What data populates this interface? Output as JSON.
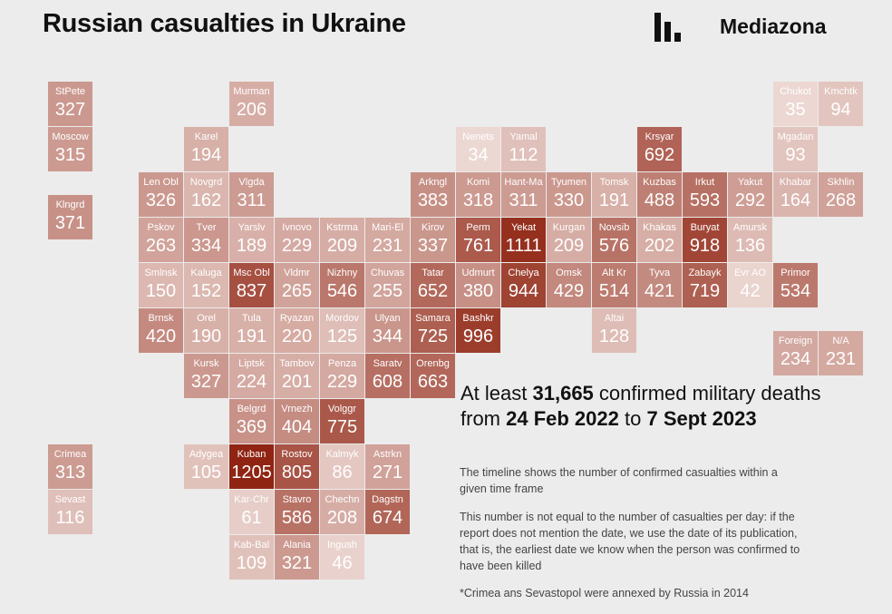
{
  "header": {
    "title": "Russian casualties in Ukraine",
    "brand": "Mediazona"
  },
  "chart_data": {
    "type": "heatmap",
    "title": "Russian casualties in Ukraine",
    "colors": {
      "min": "#ecd8d3",
      "max": "#8f2412"
    },
    "value_range": [
      34,
      1205
    ],
    "cells": [
      {
        "name": "StPete",
        "value": 327,
        "row": 0,
        "col": 0
      },
      {
        "name": "Murman",
        "value": 206,
        "row": 0,
        "col": 4
      },
      {
        "name": "Chukot",
        "value": 35,
        "row": 0,
        "col": 16
      },
      {
        "name": "Kmchtk",
        "value": 94,
        "row": 0,
        "col": 17
      },
      {
        "name": "Moscow",
        "value": 315,
        "row": 1,
        "col": 0
      },
      {
        "name": "Karel",
        "value": 194,
        "row": 1,
        "col": 3
      },
      {
        "name": "Nenets",
        "value": 34,
        "row": 1,
        "col": 9
      },
      {
        "name": "Yamal",
        "value": 112,
        "row": 1,
        "col": 10
      },
      {
        "name": "Krsyar",
        "value": 692,
        "row": 1,
        "col": 13
      },
      {
        "name": "Mgadan",
        "value": 93,
        "row": 1,
        "col": 16
      },
      {
        "name": "Len Obl",
        "value": 326,
        "row": 2,
        "col": 2
      },
      {
        "name": "Novgrd",
        "value": 162,
        "row": 2,
        "col": 3
      },
      {
        "name": "Vlgda",
        "value": 311,
        "row": 2,
        "col": 4
      },
      {
        "name": "Arkngl",
        "value": 383,
        "row": 2,
        "col": 8
      },
      {
        "name": "Komi",
        "value": 318,
        "row": 2,
        "col": 9
      },
      {
        "name": "Hant-Ma",
        "value": 311,
        "row": 2,
        "col": 10
      },
      {
        "name": "Tyumen",
        "value": 330,
        "row": 2,
        "col": 11
      },
      {
        "name": "Tomsk",
        "value": 191,
        "row": 2,
        "col": 12
      },
      {
        "name": "Kuzbas",
        "value": 488,
        "row": 2,
        "col": 13
      },
      {
        "name": "Irkut",
        "value": 593,
        "row": 2,
        "col": 14
      },
      {
        "name": "Yakut",
        "value": 292,
        "row": 2,
        "col": 15
      },
      {
        "name": "Khabar",
        "value": 164,
        "row": 2,
        "col": 16
      },
      {
        "name": "Skhlin",
        "value": 268,
        "row": 2,
        "col": 17
      },
      {
        "name": "Klngrd",
        "value": 371,
        "row": 2.5,
        "col": 0
      },
      {
        "name": "Pskov",
        "value": 263,
        "row": 3,
        "col": 2
      },
      {
        "name": "Tver",
        "value": 334,
        "row": 3,
        "col": 3
      },
      {
        "name": "Yarslv",
        "value": 189,
        "row": 3,
        "col": 4
      },
      {
        "name": "Ivnovo",
        "value": 229,
        "row": 3,
        "col": 5
      },
      {
        "name": "Kstrma",
        "value": 209,
        "row": 3,
        "col": 6
      },
      {
        "name": "Mari-El",
        "value": 231,
        "row": 3,
        "col": 7
      },
      {
        "name": "Kirov",
        "value": 337,
        "row": 3,
        "col": 8
      },
      {
        "name": "Perm",
        "value": 761,
        "row": 3,
        "col": 9
      },
      {
        "name": "Yekat",
        "value": 1111,
        "row": 3,
        "col": 10
      },
      {
        "name": "Kurgan",
        "value": 209,
        "row": 3,
        "col": 11
      },
      {
        "name": "Novsib",
        "value": 576,
        "row": 3,
        "col": 12
      },
      {
        "name": "Khakas",
        "value": 202,
        "row": 3,
        "col": 13
      },
      {
        "name": "Buryat",
        "value": 918,
        "row": 3,
        "col": 14
      },
      {
        "name": "Amursk",
        "value": 136,
        "row": 3,
        "col": 15
      },
      {
        "name": "Smlnsk",
        "value": 150,
        "row": 4,
        "col": 2
      },
      {
        "name": "Kaluga",
        "value": 152,
        "row": 4,
        "col": 3
      },
      {
        "name": "Msc Obl",
        "value": 837,
        "row": 4,
        "col": 4
      },
      {
        "name": "Vldmr",
        "value": 265,
        "row": 4,
        "col": 5
      },
      {
        "name": "Nizhny",
        "value": 546,
        "row": 4,
        "col": 6
      },
      {
        "name": "Chuvas",
        "value": 255,
        "row": 4,
        "col": 7
      },
      {
        "name": "Tatar",
        "value": 652,
        "row": 4,
        "col": 8
      },
      {
        "name": "Udmurt",
        "value": 380,
        "row": 4,
        "col": 9
      },
      {
        "name": "Chelya",
        "value": 944,
        "row": 4,
        "col": 10
      },
      {
        "name": "Omsk",
        "value": 429,
        "row": 4,
        "col": 11
      },
      {
        "name": "Alt Kr",
        "value": 514,
        "row": 4,
        "col": 12
      },
      {
        "name": "Tyva",
        "value": 421,
        "row": 4,
        "col": 13
      },
      {
        "name": "Zabayk",
        "value": 719,
        "row": 4,
        "col": 14
      },
      {
        "name": "Evr AO",
        "value": 42,
        "row": 4,
        "col": 15
      },
      {
        "name": "Primor",
        "value": 534,
        "row": 4,
        "col": 16
      },
      {
        "name": "Brnsk",
        "value": 420,
        "row": 5,
        "col": 2
      },
      {
        "name": "Orel",
        "value": 190,
        "row": 5,
        "col": 3
      },
      {
        "name": "Tula",
        "value": 191,
        "row": 5,
        "col": 4
      },
      {
        "name": "Ryazan",
        "value": 220,
        "row": 5,
        "col": 5
      },
      {
        "name": "Mordov",
        "value": 125,
        "row": 5,
        "col": 6
      },
      {
        "name": "Ulyan",
        "value": 344,
        "row": 5,
        "col": 7
      },
      {
        "name": "Samara",
        "value": 725,
        "row": 5,
        "col": 8
      },
      {
        "name": "Bashkr",
        "value": 996,
        "row": 5,
        "col": 9
      },
      {
        "name": "Altai",
        "value": 128,
        "row": 5,
        "col": 12
      },
      {
        "name": "Foreign",
        "value": 234,
        "row": 5.5,
        "col": 16
      },
      {
        "name": "N/A",
        "value": 231,
        "row": 5.5,
        "col": 17
      },
      {
        "name": "Kursk",
        "value": 327,
        "row": 6,
        "col": 3
      },
      {
        "name": "Liptsk",
        "value": 224,
        "row": 6,
        "col": 4
      },
      {
        "name": "Tambov",
        "value": 201,
        "row": 6,
        "col": 5
      },
      {
        "name": "Penza",
        "value": 229,
        "row": 6,
        "col": 6
      },
      {
        "name": "Saratv",
        "value": 608,
        "row": 6,
        "col": 7
      },
      {
        "name": "Orenbg",
        "value": 663,
        "row": 6,
        "col": 8
      },
      {
        "name": "Belgrd",
        "value": 369,
        "row": 7,
        "col": 4
      },
      {
        "name": "Vrnezh",
        "value": 404,
        "row": 7,
        "col": 5
      },
      {
        "name": "Volggr",
        "value": 775,
        "row": 7,
        "col": 6
      },
      {
        "name": "Crimea",
        "value": 313,
        "row": 8,
        "col": 0
      },
      {
        "name": "Adygea",
        "value": 105,
        "row": 8,
        "col": 3
      },
      {
        "name": "Kuban",
        "value": 1205,
        "row": 8,
        "col": 4
      },
      {
        "name": "Rostov",
        "value": 805,
        "row": 8,
        "col": 5
      },
      {
        "name": "Kalmyk",
        "value": 86,
        "row": 8,
        "col": 6
      },
      {
        "name": "Astrkn",
        "value": 271,
        "row": 8,
        "col": 7
      },
      {
        "name": "Sevast",
        "value": 116,
        "row": 9,
        "col": 0
      },
      {
        "name": "Kar-Chr",
        "value": 61,
        "row": 9,
        "col": 4
      },
      {
        "name": "Stavro",
        "value": 586,
        "row": 9,
        "col": 5
      },
      {
        "name": "Chechn",
        "value": 208,
        "row": 9,
        "col": 6
      },
      {
        "name": "Dagstn",
        "value": 674,
        "row": 9,
        "col": 7
      },
      {
        "name": "Kab-Bal",
        "value": 109,
        "row": 10,
        "col": 4
      },
      {
        "name": "Alania",
        "value": 321,
        "row": 10,
        "col": 5
      },
      {
        "name": "Ingush",
        "value": 46,
        "row": 10,
        "col": 6
      }
    ]
  },
  "summary": {
    "prefix": "At least",
    "total": "31,665",
    "mid": "confirmed military deaths",
    "from_word": "from",
    "from_date": "24 Feb 2022",
    "to_word": "to",
    "to_date": "7 Sept 2023"
  },
  "notes": [
    "The timeline shows the number of confirmed casualties within a given time frame",
    "This number is not equal to the number of casualties per day: if the report does not mention the date, we use the date of its publication, that is, the earliest date we know when the person was confirmed to have been killed",
    "*Crimea ans Sevastopol were annexed by Russia in 2014"
  ]
}
